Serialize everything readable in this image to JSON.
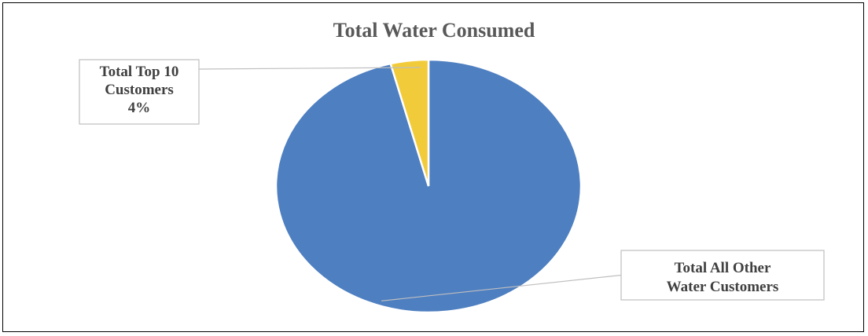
{
  "chart_data": {
    "type": "pie",
    "title": "Total Water Consumed",
    "slices": [
      {
        "label_lines": [
          "Total All Other",
          "Water Customers"
        ],
        "value": 96,
        "value_label": "",
        "color": "#4E7FC1"
      },
      {
        "label_lines": [
          "Total Top 10",
          "Customers"
        ],
        "value": 4,
        "value_label": "4%",
        "color": "#F2CB3A"
      }
    ]
  }
}
